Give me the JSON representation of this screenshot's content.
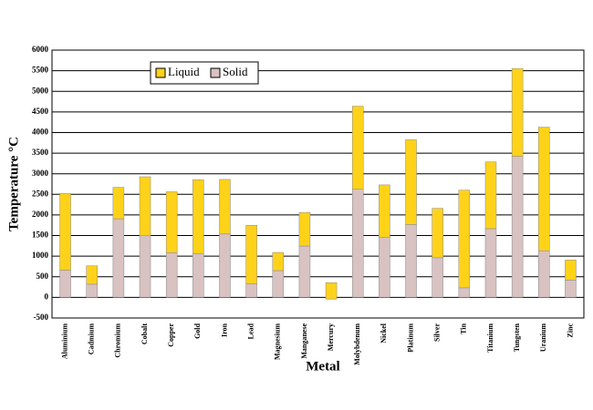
{
  "chart_data": {
    "type": "stacked_bar",
    "x_label": "Metal",
    "y_label": "Temperature °C",
    "categories": [
      "Aluminium",
      "Cadmium",
      "Chromium",
      "Cobalt",
      "Copper",
      "Gold",
      "Iron",
      "Lead",
      "Magnesium",
      "Manganese",
      "Mercury",
      "Molybdenum",
      "Nickel",
      "Platinum",
      "Silver",
      "Tin",
      "Titanium",
      "Tungsten",
      "Uranium",
      "Zinc"
    ],
    "series": [
      {
        "name": "Solid",
        "color": "#d9c2c2",
        "values": [
          660,
          320,
          1907,
          1495,
          1085,
          1064,
          1538,
          327,
          650,
          1246,
          -39,
          2623,
          1455,
          1768,
          962,
          232,
          1668,
          3422,
          1132,
          420
        ]
      },
      {
        "name": "Liquid",
        "color": "#ffd21a",
        "values": [
          1860,
          445,
          763,
          1432,
          1477,
          1792,
          1324,
          1422,
          440,
          815,
          396,
          2016,
          1275,
          2057,
          1200,
          2370,
          1619,
          2133,
          2999,
          487
        ]
      }
    ],
    "ylim": [
      -500,
      6000
    ],
    "yticks": [
      -500,
      0,
      500,
      1000,
      1500,
      2000,
      2500,
      3000,
      3500,
      4000,
      4500,
      5000,
      5500,
      6000
    ],
    "grid": true,
    "legend": "top-left"
  }
}
